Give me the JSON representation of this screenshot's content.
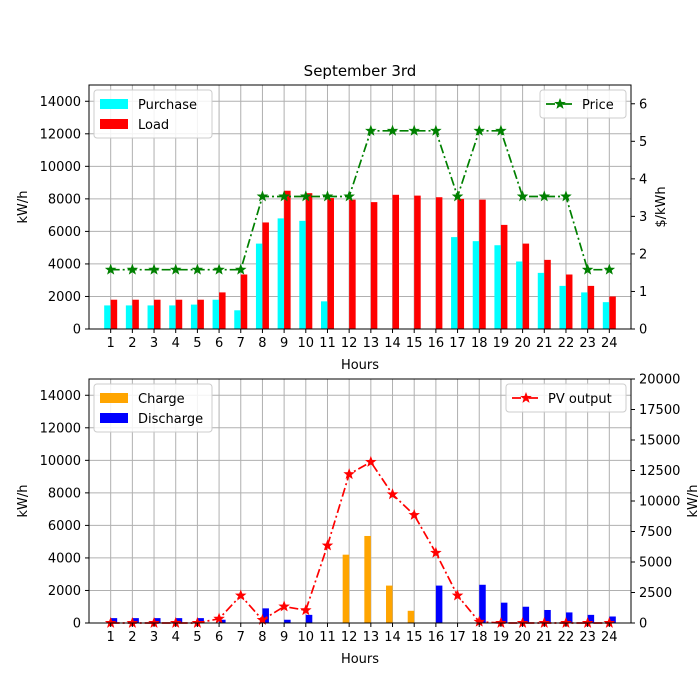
{
  "chart_data": [
    {
      "type": "bar",
      "title": "September 3rd",
      "xlabel": "Hours",
      "ylabel": "kW/h",
      "ylabel_right": "$/kWh",
      "categories": [
        "1",
        "2",
        "3",
        "4",
        "5",
        "6",
        "7",
        "8",
        "9",
        "10",
        "11",
        "12",
        "13",
        "14",
        "15",
        "16",
        "17",
        "18",
        "19",
        "20",
        "21",
        "22",
        "23",
        "24"
      ],
      "ylim": [
        0,
        15000
      ],
      "yticks": [
        "0",
        "2000",
        "4000",
        "6000",
        "8000",
        "10000",
        "12000",
        "14000"
      ],
      "ylim_right": [
        0,
        6.5
      ],
      "yticks_right": [
        "0",
        "1",
        "2",
        "3",
        "4",
        "5",
        "6"
      ],
      "grid": true,
      "legend_left_position": "top-left",
      "legend_right_position": "top-right",
      "series": [
        {
          "name": "Purchase",
          "kind": "bar",
          "axis": "left",
          "color": "#00ffff",
          "values": [
            1450,
            1450,
            1450,
            1450,
            1500,
            1800,
            1150,
            5250,
            6800,
            6650,
            1700,
            0,
            0,
            0,
            0,
            0,
            5650,
            5400,
            5150,
            4150,
            3450,
            2650,
            2250,
            1650
          ]
        },
        {
          "name": "Load",
          "kind": "bar",
          "axis": "left",
          "color": "#ff0000",
          "values": [
            1800,
            1800,
            1800,
            1800,
            1800,
            2250,
            3350,
            6550,
            8500,
            8350,
            8050,
            7950,
            7800,
            8250,
            8200,
            8100,
            8000,
            7950,
            6400,
            5250,
            4250,
            3350,
            2650,
            2000
          ]
        },
        {
          "name": "Price",
          "kind": "line",
          "axis": "right",
          "color": "#008000",
          "values": [
            1.58,
            1.58,
            1.58,
            1.58,
            1.58,
            1.58,
            1.58,
            3.53,
            3.53,
            3.53,
            3.53,
            3.53,
            5.28,
            5.28,
            5.28,
            5.28,
            3.53,
            5.28,
            5.28,
            3.53,
            3.53,
            3.53,
            1.58,
            1.58
          ]
        }
      ]
    },
    {
      "type": "bar",
      "title": "",
      "xlabel": "Hours",
      "ylabel": "kW/h",
      "ylabel_right": "kW/h",
      "categories": [
        "1",
        "2",
        "3",
        "4",
        "5",
        "6",
        "7",
        "8",
        "9",
        "10",
        "11",
        "12",
        "13",
        "14",
        "15",
        "16",
        "17",
        "18",
        "19",
        "20",
        "21",
        "22",
        "23",
        "24"
      ],
      "ylim": [
        0,
        15000
      ],
      "yticks": [
        "0",
        "2000",
        "4000",
        "6000",
        "8000",
        "10000",
        "12000",
        "14000"
      ],
      "ylim_right": [
        0,
        20000
      ],
      "yticks_right": [
        "0",
        "2500",
        "5000",
        "7500",
        "10000",
        "12500",
        "15000",
        "17500",
        "20000"
      ],
      "grid": true,
      "legend_left_position": "top-left",
      "legend_right_position": "top-right",
      "series": [
        {
          "name": "Charge",
          "kind": "bar",
          "axis": "left",
          "color": "#ffa500",
          "values": [
            0,
            0,
            0,
            0,
            0,
            0,
            0,
            0,
            0,
            0,
            0,
            4200,
            5350,
            2300,
            750,
            0,
            0,
            0,
            0,
            0,
            0,
            0,
            0,
            0
          ]
        },
        {
          "name": "Discharge",
          "kind": "bar",
          "axis": "left",
          "color": "#0000ff",
          "values": [
            300,
            300,
            300,
            300,
            300,
            200,
            0,
            900,
            200,
            500,
            0,
            0,
            0,
            0,
            0,
            2300,
            0,
            2350,
            1250,
            1000,
            800,
            650,
            500,
            400
          ]
        },
        {
          "name": "PV output",
          "kind": "line",
          "axis": "right",
          "color": "#ff0000",
          "values": [
            0,
            0,
            0,
            0,
            0,
            350,
            2250,
            250,
            1350,
            1050,
            6350,
            12200,
            13200,
            10550,
            8850,
            5750,
            2250,
            100,
            0,
            0,
            0,
            0,
            0,
            0
          ]
        }
      ]
    }
  ]
}
